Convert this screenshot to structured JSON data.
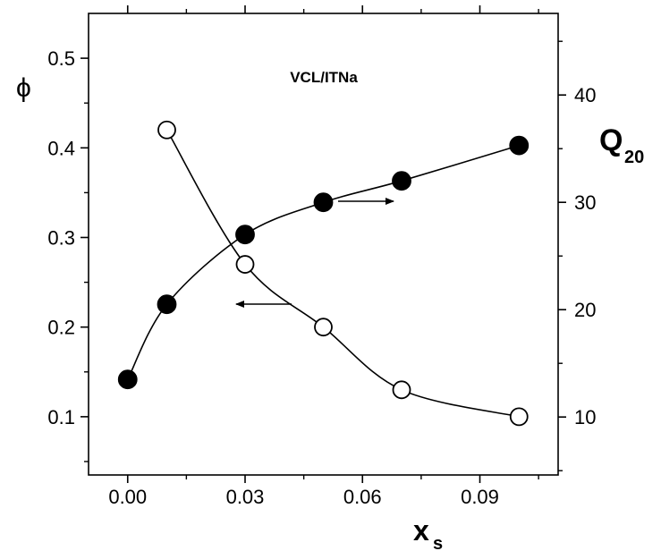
{
  "chart_data": {
    "type": "scatter",
    "annotation": "VCL/ITNa",
    "xlabel": "x",
    "xlabel_sub": "s",
    "ylabel_left": "ϕ",
    "ylabel_right": "Q",
    "ylabel_right_sub": "20",
    "xlim": [
      -0.01,
      0.11
    ],
    "ylim_left": [
      0.035,
      0.55
    ],
    "ylim_right": [
      4.6,
      47.6
    ],
    "xticks": [
      0.0,
      0.03,
      0.06,
      0.09
    ],
    "xtick_labels": [
      "0.00",
      "0.03",
      "0.06",
      "0.09"
    ],
    "yticks_left": [
      0.1,
      0.2,
      0.3,
      0.4,
      0.5
    ],
    "ytick_labels_left": [
      "0.1",
      "0.2",
      "0.3",
      "0.4",
      "0.5"
    ],
    "yticks_right": [
      10,
      20,
      30,
      40
    ],
    "ytick_labels_right": [
      "10",
      "20",
      "30",
      "40"
    ],
    "series": [
      {
        "axis": "left",
        "marker": "open-circle",
        "x": [
          0.01,
          0.03,
          0.05,
          0.07,
          0.1
        ],
        "y": [
          0.42,
          0.27,
          0.2,
          0.13,
          0.1
        ]
      },
      {
        "axis": "right",
        "marker": "filled-circle",
        "x": [
          0.0,
          0.01,
          0.03,
          0.05,
          0.07,
          0.1
        ],
        "y": [
          13.5,
          20.5,
          27.0,
          30.0,
          32.0,
          35.3
        ]
      }
    ]
  }
}
